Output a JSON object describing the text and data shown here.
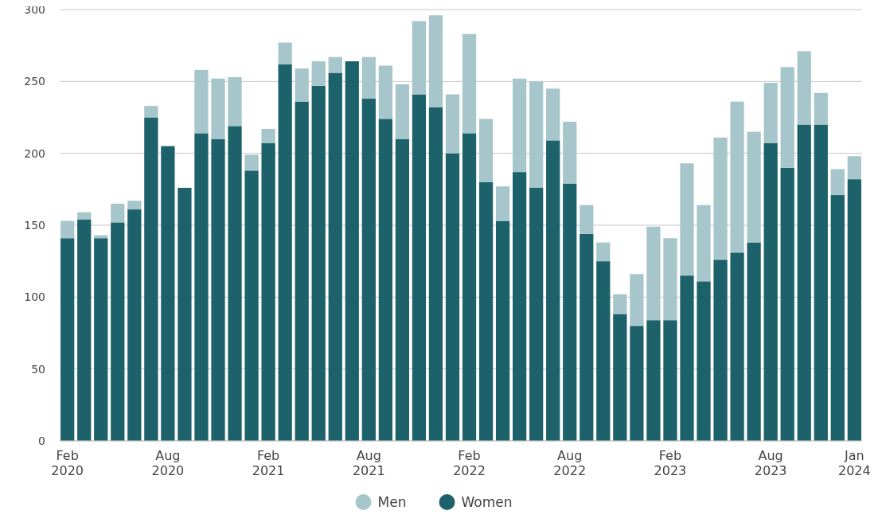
{
  "chart_data": {
    "type": "bar",
    "stacked": true,
    "categories": [
      "Feb 2020",
      null,
      null,
      null,
      null,
      null,
      "Aug 2020",
      null,
      null,
      null,
      null,
      null,
      "Feb 2021",
      null,
      null,
      null,
      null,
      null,
      "Aug 2021",
      null,
      null,
      null,
      null,
      null,
      "Feb 2022",
      null,
      null,
      null,
      null,
      null,
      "Aug 2022",
      null,
      null,
      null,
      null,
      null,
      "Feb 2023",
      null,
      null,
      null,
      null,
      null,
      "Aug 2023",
      null,
      null,
      null,
      null,
      "Jan 2024"
    ],
    "series": [
      {
        "name": "Women",
        "color": "#1d616b",
        "values": [
          141,
          154,
          141,
          152,
          161,
          225,
          205,
          176,
          214,
          210,
          219,
          188,
          207,
          262,
          236,
          247,
          256,
          264,
          238,
          224,
          210,
          241,
          232,
          200,
          214,
          180,
          153,
          187,
          176,
          209,
          179,
          144,
          125,
          88,
          80,
          84,
          84,
          115,
          111,
          126,
          131,
          138,
          207,
          190,
          220,
          220,
          171,
          182
        ]
      },
      {
        "name": "Men",
        "color": "#a7c6cb",
        "values": [
          12,
          5,
          2,
          13,
          6,
          8,
          0,
          0,
          44,
          42,
          34,
          11,
          10,
          15,
          23,
          17,
          11,
          0,
          29,
          37,
          38,
          51,
          64,
          41,
          69,
          44,
          24,
          65,
          74,
          36,
          43,
          20,
          13,
          14,
          36,
          65,
          57,
          78,
          53,
          85,
          105,
          77,
          42,
          70,
          51,
          22,
          18,
          16
        ]
      }
    ],
    "ylim": [
      0,
      300
    ],
    "yticks": [
      0,
      50,
      100,
      150,
      200,
      250,
      300
    ],
    "grid": "y",
    "legend": "bottom"
  }
}
